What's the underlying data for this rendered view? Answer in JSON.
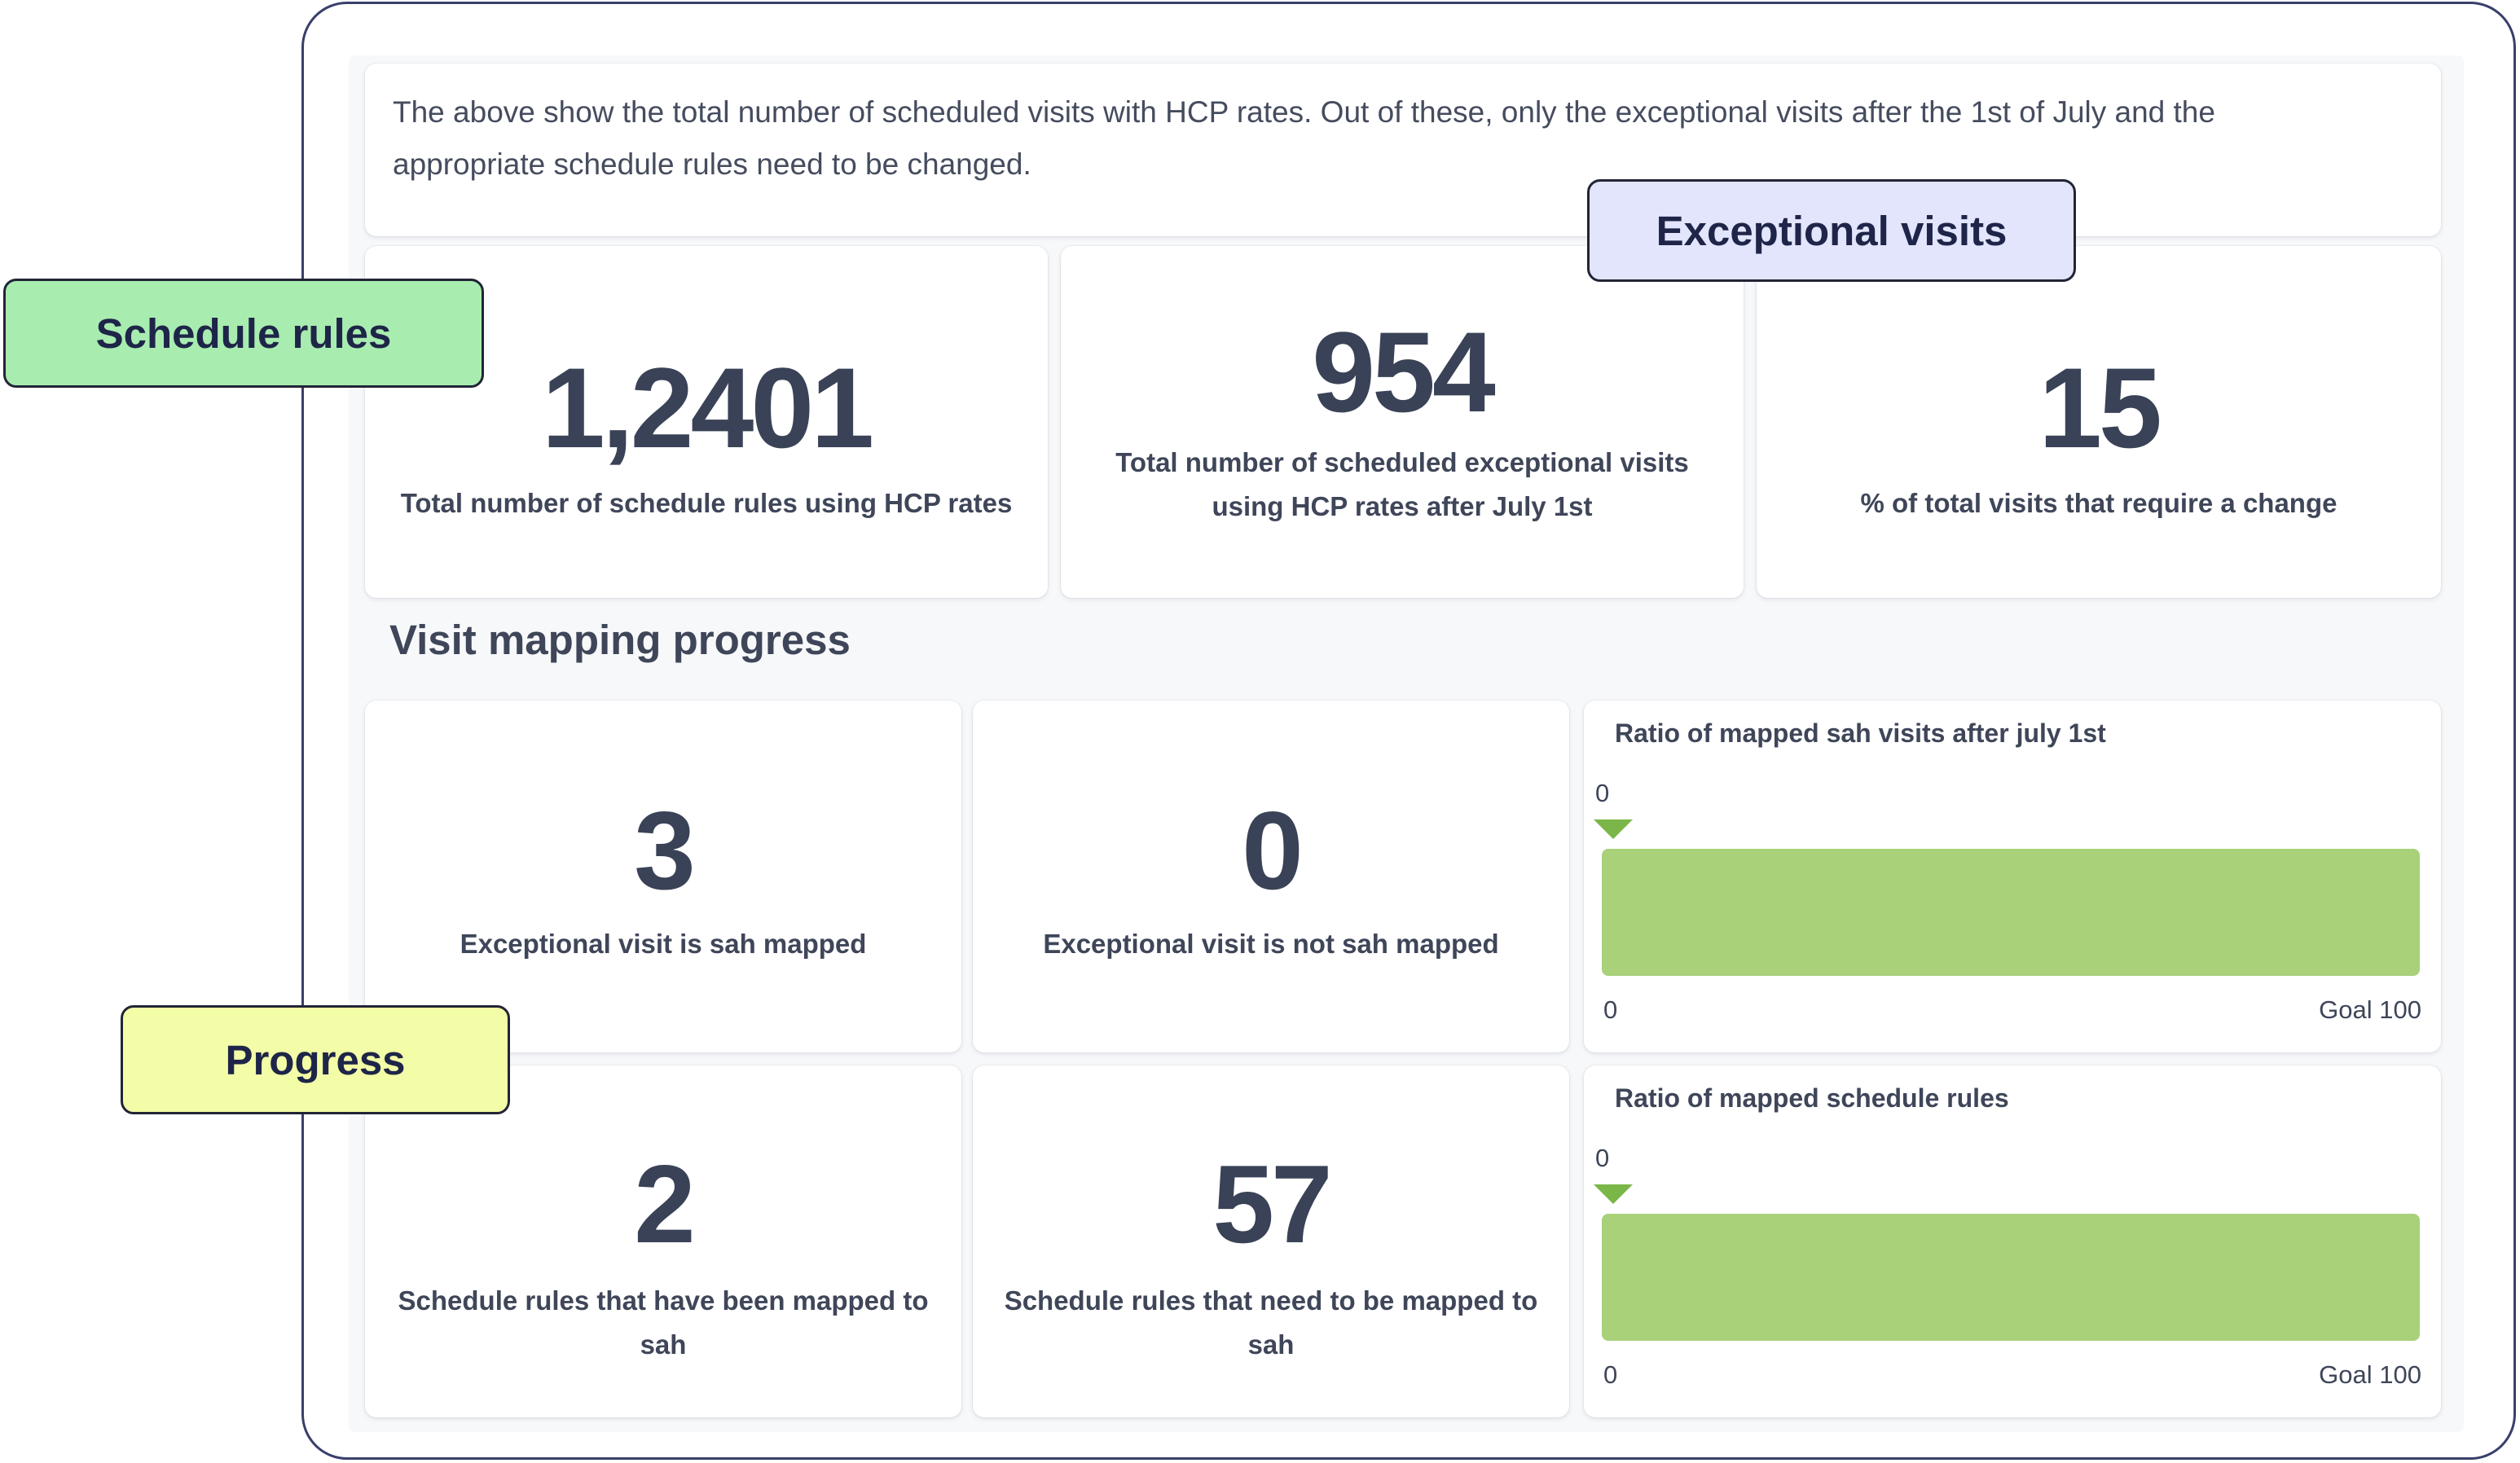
{
  "intro": {
    "text": "The above show the total number of scheduled visits with HCP rates. Out of these, only the exceptional visits after the 1st of July and the appropriate schedule rules need to be changed."
  },
  "stats": [
    {
      "value": "1,2401",
      "label": "Total number of schedule rules using HCP rates"
    },
    {
      "value": "954",
      "label": "Total number of scheduled exceptional visits using HCP rates after July 1st"
    },
    {
      "value": "15",
      "label": "% of total visits that require a change"
    }
  ],
  "section": {
    "title": "Visit mapping progress"
  },
  "progress_stats": [
    {
      "value": "3",
      "label": "Exceptional visit is sah mapped"
    },
    {
      "value": "0",
      "label": "Exceptional visit is not sah mapped"
    },
    {
      "value": "2",
      "label": "Schedule rules that have been mapped to sah"
    },
    {
      "value": "57",
      "label": "Schedule rules that need to be mapped to sah"
    }
  ],
  "gauges": [
    {
      "title": "Ratio of mapped sah visits after july 1st",
      "marker_value": "0",
      "min_label": "0",
      "max_label": "Goal 100",
      "value": 0,
      "goal": 100
    },
    {
      "title": "Ratio of mapped schedule rules",
      "marker_value": "0",
      "min_label": "0",
      "max_label": "Goal 100",
      "value": 0,
      "goal": 100
    }
  ],
  "callouts": {
    "schedule_rules": {
      "label": "Schedule rules",
      "color": "#a8ecb0"
    },
    "exceptional_visits": {
      "label": "Exceptional visits",
      "color": "#e2e5fb"
    },
    "progress": {
      "label": "Progress",
      "color": "#f3fca6"
    }
  },
  "colors": {
    "gauge_fill": "#a8d17a",
    "gauge_marker": "#7ab648",
    "frame_border": "#3a3f6b"
  }
}
